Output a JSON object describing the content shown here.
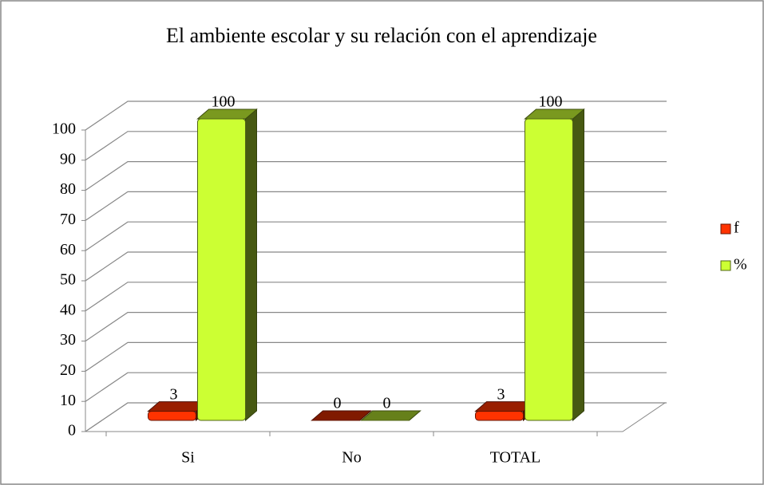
{
  "chart_data": {
    "type": "bar3d",
    "title": "El ambiente escolar y su relación con el aprendizaje",
    "categories": [
      "Si",
      "No",
      "TOTAL"
    ],
    "series": [
      {
        "name": "f",
        "color": "#ff3300",
        "values": [
          3,
          0,
          3
        ]
      },
      {
        "name": "%",
        "color": "#ccff33",
        "values": [
          100,
          0,
          100
        ]
      }
    ],
    "ylim": [
      0,
      100
    ],
    "yticks": [
      0,
      10,
      20,
      30,
      40,
      50,
      60,
      70,
      80,
      90,
      100
    ],
    "grid": true,
    "legend": "right"
  }
}
